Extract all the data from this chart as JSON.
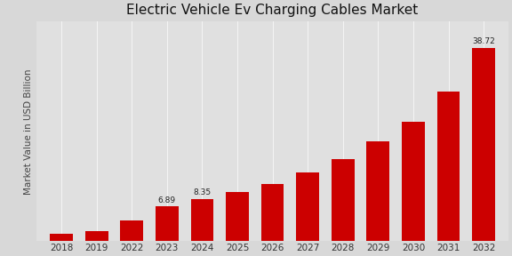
{
  "title": "Electric Vehicle Ev Charging Cables Market",
  "ylabel": "Market Value in USD Billion",
  "categories": [
    "2018",
    "2019",
    "2022",
    "2023",
    "2024",
    "2025",
    "2026",
    "2027",
    "2028",
    "2029",
    "2030",
    "2031",
    "2032"
  ],
  "values": [
    1.5,
    1.9,
    4.2,
    6.89,
    8.35,
    9.8,
    11.5,
    13.8,
    16.5,
    20.0,
    24.0,
    30.0,
    38.72
  ],
  "bar_color": "#cc0000",
  "background_color": "#d8d8d8",
  "plot_bg_color": "#e0e0e0",
  "title_fontsize": 11,
  "ylabel_fontsize": 7.5,
  "tick_fontsize": 7.5,
  "annotation_labels": {
    "2023": "6.89",
    "2024": "8.35",
    "2032": "38.72"
  },
  "ylim": [
    0,
    44
  ],
  "bar_width": 0.65
}
